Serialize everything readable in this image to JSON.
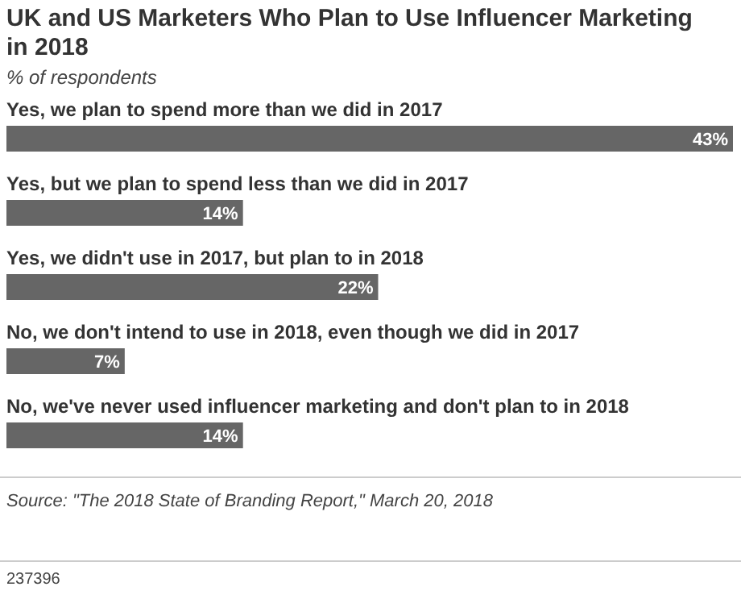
{
  "chart_data": {
    "type": "bar",
    "orientation": "horizontal",
    "title": "UK and US Marketers Who Plan to Use Influencer Marketing in 2018",
    "subtitle": "% of respondents",
    "categories": [
      "Yes, we plan to spend more than we did in 2017",
      "Yes, but we plan to spend less than we did in 2017",
      "Yes, we didn't use in 2017, but plan to in 2018",
      "No, we don't intend to use in 2018, even though we did in 2017",
      "No, we've never used influencer marketing and don't plan to in 2018"
    ],
    "values": [
      43,
      14,
      22,
      7,
      14
    ],
    "color": "#666666",
    "value_labels": [
      "43%",
      "14%",
      "22%",
      "7%",
      "14%"
    ],
    "annotations": [
      "Source: \"The 2018 State of Branding Report,\" March 20, 2018",
      "237396"
    ]
  }
}
